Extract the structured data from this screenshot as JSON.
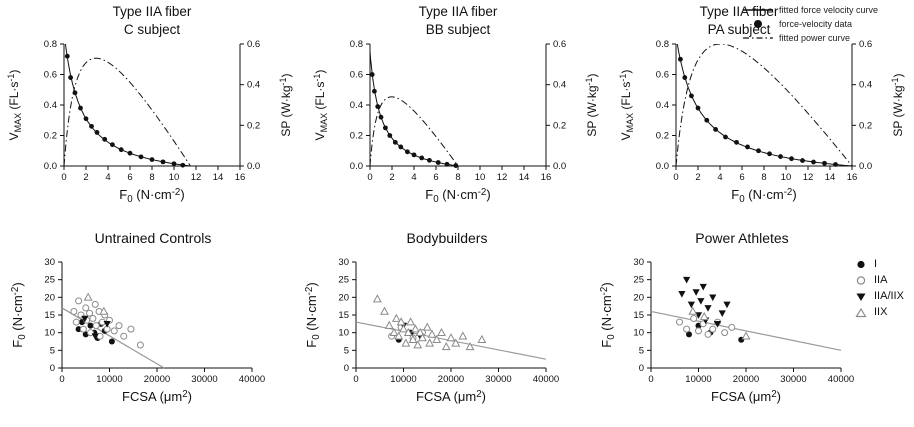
{
  "colors": {
    "axis": "#111111",
    "curve": "#111111",
    "marker_fill": "#111111",
    "marker_open_stroke": "#8a8a8a",
    "regression_line": "#999999"
  },
  "legend_top": {
    "items": [
      {
        "label": "fitted force velocity curve",
        "marker": "solid-line"
      },
      {
        "label": "force-velocity data",
        "marker": "filled-circle"
      },
      {
        "label": "fitted power curve",
        "marker": "dashdot-line"
      }
    ]
  },
  "legend_bottom": {
    "items": [
      {
        "label": "I",
        "marker": "filled-circle"
      },
      {
        "label": "IIA",
        "marker": "open-circle"
      },
      {
        "label": "IIA/IIX",
        "marker": "filled-triangle-down"
      },
      {
        "label": "IIX",
        "marker": "open-triangle-up"
      }
    ]
  },
  "chart_data": [
    {
      "id": "fv-c-subject",
      "type": "line+scatter",
      "kind": "force-velocity",
      "title_line1": "Type IIA fiber",
      "title_line2": "C subject",
      "xlabel": "F_{0} (N·cm^{-2})",
      "ylabel_left": "V_{MAX} (FL·s^{-1})",
      "ylabel_right": "SP (W·kg^{-1})",
      "xlim": [
        0,
        16
      ],
      "xticks": [
        "0",
        "2",
        "4",
        "6",
        "8",
        "10",
        "12",
        "14",
        "16"
      ],
      "ylim_left": [
        0,
        0.8
      ],
      "yticks_left": [
        "0.0",
        "0.2",
        "0.4",
        "0.6",
        "0.8"
      ],
      "ylim_right": [
        0,
        0.6
      ],
      "yticks_right": [
        "0.0",
        "0.2",
        "0.4",
        "0.6"
      ],
      "fit": {
        "vmax": 0.88,
        "fmax": 11.5,
        "k": 0.13,
        "sp_peak": 0.53
      },
      "fv_points": [
        [
          0.3,
          0.72
        ],
        [
          0.6,
          0.58
        ],
        [
          1.0,
          0.48
        ],
        [
          1.5,
          0.38
        ],
        [
          2.0,
          0.31
        ],
        [
          2.5,
          0.26
        ],
        [
          3.0,
          0.22
        ],
        [
          3.7,
          0.175
        ],
        [
          4.4,
          0.14
        ],
        [
          5.2,
          0.107
        ],
        [
          6.0,
          0.084
        ],
        [
          7.0,
          0.06
        ],
        [
          8.0,
          0.042
        ],
        [
          9.0,
          0.027
        ],
        [
          10.0,
          0.015
        ],
        [
          10.8,
          0.005
        ]
      ]
    },
    {
      "id": "fv-bb-subject",
      "type": "line+scatter",
      "kind": "force-velocity",
      "title_line1": "Type IIA fiber",
      "title_line2": "BB subject",
      "xlabel": "F_{0} (N·cm^{-2})",
      "ylabel_left": "V_{MAX} (FL·s^{-1})",
      "ylabel_right": "SP (W·kg^{-1})",
      "xlim": [
        0,
        16
      ],
      "xticks": [
        "0",
        "2",
        "4",
        "6",
        "8",
        "10",
        "12",
        "14",
        "16"
      ],
      "ylim_left": [
        0,
        0.8
      ],
      "yticks_left": [
        "0.0",
        "0.2",
        "0.4",
        "0.6",
        "0.8"
      ],
      "ylim_right": [
        0,
        0.6
      ],
      "yticks_right": [
        "0.0",
        "0.2",
        "0.4",
        "0.6"
      ],
      "fit": {
        "vmax": 0.75,
        "fmax": 8.0,
        "k": 0.12,
        "sp_peak": 0.34
      },
      "fv_points": [
        [
          0.2,
          0.6
        ],
        [
          0.4,
          0.49
        ],
        [
          0.7,
          0.39
        ],
        [
          1.0,
          0.32
        ],
        [
          1.4,
          0.25
        ],
        [
          1.8,
          0.2
        ],
        [
          2.3,
          0.155
        ],
        [
          2.8,
          0.125
        ],
        [
          3.4,
          0.093
        ],
        [
          4.0,
          0.073
        ],
        [
          4.7,
          0.053
        ],
        [
          5.4,
          0.037
        ],
        [
          6.2,
          0.023
        ],
        [
          7.0,
          0.011
        ],
        [
          7.8,
          0.003
        ]
      ]
    },
    {
      "id": "fv-pa-subject",
      "type": "line+scatter",
      "kind": "force-velocity",
      "title_line1": "Type IIA fiber",
      "title_line2": "PA subject",
      "xlabel": "F_{0} (N·cm^{-2})",
      "ylabel_left": "V_{MAX} (FL·s^{-1})",
      "ylabel_right": "SP (W·kg^{-1})",
      "xlim": [
        0,
        16
      ],
      "xticks": [
        "0",
        "2",
        "4",
        "6",
        "8",
        "10",
        "12",
        "14",
        "16"
      ],
      "ylim_left": [
        0,
        0.8
      ],
      "yticks_left": [
        "0.0",
        "0.2",
        "0.4",
        "0.6",
        "0.8"
      ],
      "ylim_right": [
        0,
        0.6
      ],
      "yticks_right": [
        "0.0",
        "0.2",
        "0.4",
        "0.6"
      ],
      "fit": {
        "vmax": 0.85,
        "fmax": 16.0,
        "k": 0.13,
        "sp_peak": 0.6
      },
      "fv_points": [
        [
          0.4,
          0.7
        ],
        [
          0.8,
          0.58
        ],
        [
          1.4,
          0.46
        ],
        [
          2.0,
          0.38
        ],
        [
          2.8,
          0.3
        ],
        [
          3.6,
          0.24
        ],
        [
          4.5,
          0.19
        ],
        [
          5.5,
          0.155
        ],
        [
          6.5,
          0.125
        ],
        [
          7.5,
          0.1
        ],
        [
          8.5,
          0.08
        ],
        [
          9.5,
          0.062
        ],
        [
          10.5,
          0.048
        ],
        [
          11.5,
          0.036
        ],
        [
          12.5,
          0.026
        ],
        [
          13.5,
          0.018
        ],
        [
          14.5,
          0.01
        ]
      ]
    },
    {
      "id": "untrained-controls",
      "type": "scatter",
      "kind": "fcsa-scatter",
      "title": "Untrained Controls",
      "xlabel": "FCSA (μm^{2})",
      "ylabel": "F_{0} (N·cm^{-2})",
      "xlim": [
        0,
        40000
      ],
      "xticks": [
        "0",
        "10000",
        "20000",
        "30000",
        "40000"
      ],
      "ylim": [
        0,
        30
      ],
      "yticks": [
        "0",
        "5",
        "10",
        "15",
        "20",
        "25",
        "30"
      ],
      "regression_line": [
        [
          0,
          17
        ],
        [
          21500,
          0
        ]
      ],
      "series": [
        {
          "name": "I",
          "marker": "filled-circle",
          "points": [
            [
              3500,
              11
            ],
            [
              4200,
              13
            ],
            [
              5000,
              9.5
            ],
            [
              6000,
              12
            ],
            [
              6800,
              10
            ],
            [
              7500,
              8.5
            ],
            [
              8200,
              12.5
            ],
            [
              9000,
              10.5
            ],
            [
              10500,
              7.5
            ]
          ]
        },
        {
          "name": "IIA",
          "marker": "open-circle",
          "points": [
            [
              2500,
              16
            ],
            [
              3000,
              13
            ],
            [
              3500,
              19
            ],
            [
              4000,
              15
            ],
            [
              4500,
              11
            ],
            [
              5000,
              17
            ],
            [
              5200,
              13.5
            ],
            [
              5800,
              15.5
            ],
            [
              6000,
              10
            ],
            [
              6500,
              14
            ],
            [
              7000,
              18
            ],
            [
              7200,
              12
            ],
            [
              7800,
              16
            ],
            [
              8000,
              9
            ],
            [
              8500,
              13
            ],
            [
              9000,
              15
            ],
            [
              9500,
              11
            ],
            [
              10000,
              13.5
            ],
            [
              11000,
              10.5
            ],
            [
              12000,
              12
            ],
            [
              13000,
              9
            ],
            [
              14500,
              11
            ],
            [
              16500,
              6.5
            ]
          ]
        },
        {
          "name": "IIA/IIX",
          "marker": "filled-triangle-down",
          "points": [
            [
              4800,
              14
            ],
            [
              7000,
              9
            ],
            [
              9500,
              12.5
            ]
          ]
        },
        {
          "name": "IIX",
          "marker": "open-triangle-up",
          "points": [
            [
              5500,
              20
            ],
            [
              8800,
              16
            ]
          ]
        }
      ]
    },
    {
      "id": "bodybuilders",
      "type": "scatter",
      "kind": "fcsa-scatter",
      "title": "Bodybuilders",
      "xlabel": "FCSA (μm^{2})",
      "ylabel": "F_{0} (N·cm^{-2})",
      "xlim": [
        0,
        40000
      ],
      "xticks": [
        "0",
        "10000",
        "20000",
        "30000",
        "40000"
      ],
      "ylim": [
        0,
        30
      ],
      "yticks": [
        "0",
        "5",
        "10",
        "15",
        "20",
        "25",
        "30"
      ],
      "regression_line": [
        [
          0,
          13
        ],
        [
          40000,
          2.5
        ]
      ],
      "series": [
        {
          "name": "I",
          "marker": "filled-circle",
          "points": [
            [
              9000,
              8
            ],
            [
              11500,
              10
            ]
          ]
        },
        {
          "name": "IIA",
          "marker": "open-circle",
          "points": [
            [
              7500,
              9
            ],
            [
              9500,
              11.5
            ],
            [
              12000,
              8.5
            ],
            [
              14000,
              10
            ]
          ]
        },
        {
          "name": "IIA/IIX",
          "marker": "filled-triangle-down",
          "points": [
            [
              10000,
              12
            ],
            [
              13500,
              9
            ]
          ]
        },
        {
          "name": "IIX",
          "marker": "open-triangle-up",
          "points": [
            [
              4500,
              19.5
            ],
            [
              6000,
              16
            ],
            [
              7000,
              12
            ],
            [
              8000,
              10
            ],
            [
              8500,
              14
            ],
            [
              9000,
              9
            ],
            [
              9500,
              13
            ],
            [
              10000,
              11
            ],
            [
              10500,
              7
            ],
            [
              11000,
              10
            ],
            [
              11500,
              13
            ],
            [
              12000,
              8
            ],
            [
              12500,
              11
            ],
            [
              13000,
              6.5
            ],
            [
              13500,
              10
            ],
            [
              14000,
              8.5
            ],
            [
              15000,
              11.5
            ],
            [
              15500,
              7
            ],
            [
              16000,
              9.5
            ],
            [
              17000,
              8
            ],
            [
              18000,
              10
            ],
            [
              19000,
              6
            ],
            [
              20000,
              8.5
            ],
            [
              21000,
              7
            ],
            [
              22500,
              9
            ],
            [
              24000,
              6
            ],
            [
              26500,
              8
            ]
          ]
        }
      ]
    },
    {
      "id": "power-athletes",
      "type": "scatter",
      "kind": "fcsa-scatter",
      "title": "Power Athletes",
      "xlabel": "FCSA (μm^{2})",
      "ylabel": "F_{0} (N·cm^{-2})",
      "xlim": [
        0,
        40000
      ],
      "xticks": [
        "0",
        "10000",
        "20000",
        "30000",
        "40000"
      ],
      "ylim": [
        0,
        30
      ],
      "yticks": [
        "0",
        "5",
        "10",
        "15",
        "20",
        "25",
        "30"
      ],
      "regression_line": [
        [
          0,
          16
        ],
        [
          40000,
          5
        ]
      ],
      "series": [
        {
          "name": "I",
          "marker": "filled-circle",
          "points": [
            [
              8000,
              9.5
            ],
            [
              10000,
              12
            ],
            [
              12500,
              10
            ],
            [
              19000,
              8
            ]
          ]
        },
        {
          "name": "IIA",
          "marker": "open-circle",
          "points": [
            [
              6000,
              13
            ],
            [
              7500,
              11
            ],
            [
              9000,
              14
            ],
            [
              10000,
              10.5
            ],
            [
              11000,
              12.5
            ],
            [
              12000,
              9.5
            ],
            [
              13000,
              11
            ],
            [
              14000,
              13
            ],
            [
              15500,
              10
            ],
            [
              17000,
              11.5
            ]
          ]
        },
        {
          "name": "IIA/IIX",
          "marker": "filled-triangle-down",
          "points": [
            [
              6500,
              21
            ],
            [
              7500,
              25
            ],
            [
              8500,
              18
            ],
            [
              9500,
              21.5
            ],
            [
              10000,
              15
            ],
            [
              10500,
              19
            ],
            [
              11000,
              23
            ],
            [
              11500,
              13.5
            ],
            [
              12000,
              17
            ],
            [
              13000,
              20
            ],
            [
              14000,
              12.5
            ],
            [
              15000,
              15.5
            ],
            [
              16000,
              18
            ]
          ]
        },
        {
          "name": "IIX",
          "marker": "open-triangle-up",
          "points": [
            [
              8800,
              16
            ],
            [
              11200,
              14.5
            ],
            [
              20000,
              9
            ]
          ]
        }
      ]
    }
  ]
}
